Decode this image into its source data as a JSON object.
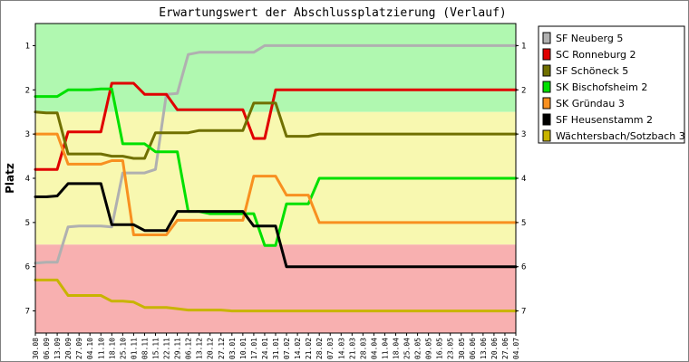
{
  "chart_data": {
    "type": "line",
    "title": "Erwartungswert der Abschlussplatzierung (Verlauf)",
    "ylabel": "Platz",
    "xlabel": "",
    "ylim": [
      0.5,
      7.5
    ],
    "y_inverted": true,
    "yticks": [
      1,
      2,
      3,
      4,
      5,
      6,
      7
    ],
    "x": [
      "30.08",
      "06.09",
      "13.09",
      "20.09",
      "27.09",
      "04.10",
      "11.10",
      "18.10",
      "25.10",
      "01.11",
      "08.11",
      "15.11",
      "22.11",
      "29.11",
      "06.12",
      "13.12",
      "20.12",
      "27.12",
      "03.01",
      "10.01",
      "17.01",
      "24.01",
      "31.01",
      "07.02",
      "14.02",
      "21.02",
      "28.02",
      "07.03",
      "14.03",
      "21.03",
      "28.03",
      "04.04",
      "11.04",
      "18.04",
      "25.04",
      "02.05",
      "09.05",
      "16.05",
      "23.05",
      "30.05",
      "06.06",
      "13.06",
      "20.06",
      "27.06",
      "04.07"
    ],
    "background_bands": [
      {
        "from": 0.5,
        "to": 2.5,
        "color": "#b0f8b0"
      },
      {
        "from": 2.5,
        "to": 5.5,
        "color": "#f8f8b0"
      },
      {
        "from": 5.5,
        "to": 7.5,
        "color": "#f8b0b0"
      }
    ],
    "legend_position": "right",
    "series": [
      {
        "name": "SF Neuberg 5",
        "color": "#b0b0b0",
        "values": [
          5.92,
          5.9,
          5.9,
          5.1,
          5.08,
          5.08,
          5.08,
          5.1,
          3.88,
          3.88,
          3.88,
          3.8,
          2.1,
          2.08,
          1.2,
          1.15,
          1.15,
          1.15,
          1.15,
          1.15,
          1.15,
          1,
          1,
          1,
          1,
          1,
          1,
          1,
          1,
          1,
          1,
          1,
          1,
          1,
          1,
          1,
          1,
          1,
          1,
          1,
          1,
          1,
          1,
          1,
          1
        ]
      },
      {
        "name": "SC Ronneburg 2",
        "color": "#e00000",
        "values": [
          3.8,
          3.8,
          3.8,
          2.95,
          2.95,
          2.95,
          2.95,
          1.85,
          1.85,
          1.85,
          2.1,
          2.1,
          2.1,
          2.45,
          2.45,
          2.45,
          2.45,
          2.45,
          2.45,
          2.45,
          3.1,
          3.1,
          2.0,
          2,
          2,
          2,
          2,
          2,
          2,
          2,
          2,
          2,
          2,
          2,
          2,
          2,
          2,
          2,
          2,
          2,
          2,
          2,
          2,
          2,
          2
        ]
      },
      {
        "name": "SF Schöneck 5",
        "color": "#707000",
        "values": [
          2.5,
          2.52,
          2.52,
          3.45,
          3.45,
          3.45,
          3.45,
          3.5,
          3.5,
          3.55,
          3.55,
          2.97,
          2.97,
          2.97,
          2.97,
          2.92,
          2.92,
          2.92,
          2.92,
          2.92,
          2.3,
          2.3,
          2.3,
          3.05,
          3.05,
          3.05,
          3.0,
          3,
          3,
          3,
          3,
          3,
          3,
          3,
          3,
          3,
          3,
          3,
          3,
          3,
          3,
          3,
          3,
          3,
          3
        ]
      },
      {
        "name": "SK Bischofsheim 2",
        "color": "#00e000",
        "values": [
          2.15,
          2.15,
          2.15,
          2.0,
          2.0,
          2.0,
          1.98,
          1.98,
          3.22,
          3.22,
          3.22,
          3.4,
          3.4,
          3.4,
          4.75,
          4.75,
          4.8,
          4.8,
          4.8,
          4.8,
          4.8,
          5.52,
          5.52,
          4.58,
          4.58,
          4.58,
          4.0,
          4,
          4,
          4,
          4,
          4,
          4,
          4,
          4,
          4,
          4,
          4,
          4,
          4,
          4,
          4,
          4,
          4,
          4
        ]
      },
      {
        "name": "SK Gründau 3",
        "color": "#f89020",
        "values": [
          3.0,
          3.0,
          3.0,
          3.68,
          3.68,
          3.68,
          3.68,
          3.6,
          3.6,
          5.28,
          5.28,
          5.28,
          5.28,
          4.95,
          4.95,
          4.95,
          4.95,
          4.95,
          4.95,
          4.95,
          3.95,
          3.95,
          3.95,
          4.38,
          4.38,
          4.38,
          5.0,
          5,
          5,
          5,
          5,
          5,
          5,
          5,
          5,
          5,
          5,
          5,
          5,
          5,
          5,
          5,
          5,
          5,
          5
        ]
      },
      {
        "name": "SF Heusenstamm 2",
        "color": "#000000",
        "values": [
          4.42,
          4.42,
          4.4,
          4.12,
          4.12,
          4.12,
          4.12,
          5.05,
          5.05,
          5.05,
          5.18,
          5.18,
          5.18,
          4.75,
          4.75,
          4.75,
          4.75,
          4.75,
          4.75,
          4.75,
          5.08,
          5.08,
          5.08,
          6.0,
          6,
          6,
          6,
          6,
          6,
          6,
          6,
          6,
          6,
          6,
          6,
          6,
          6,
          6,
          6,
          6,
          6,
          6,
          6,
          6,
          6
        ]
      },
      {
        "name": "Wächtersbach/Sotzbach 3",
        "color": "#c8b400",
        "values": [
          6.3,
          6.3,
          6.3,
          6.65,
          6.65,
          6.65,
          6.65,
          6.78,
          6.78,
          6.8,
          6.92,
          6.92,
          6.92,
          6.95,
          6.98,
          6.98,
          6.98,
          6.98,
          7.0,
          7.0,
          7.0,
          7.0,
          7.0,
          7.0,
          7,
          7,
          7,
          7,
          7,
          7,
          7,
          7,
          7,
          7,
          7,
          7,
          7,
          7,
          7,
          7,
          7,
          7,
          7,
          7,
          7
        ]
      }
    ]
  }
}
